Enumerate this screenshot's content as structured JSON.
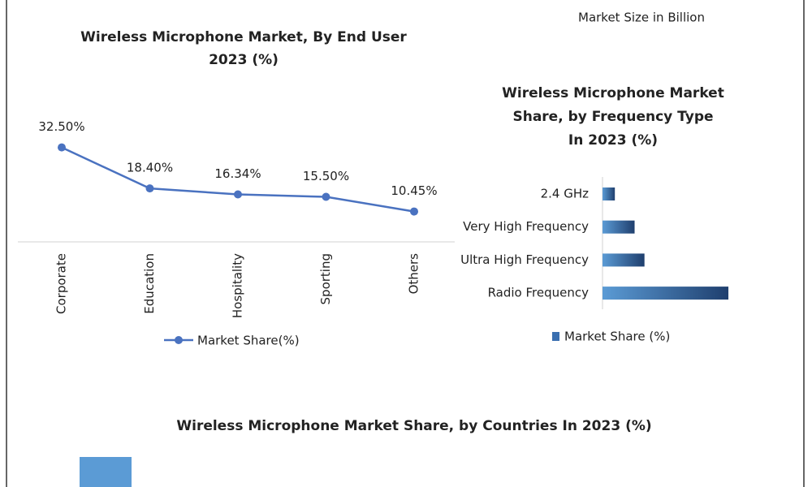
{
  "note": "Market Size in Billion",
  "chart_data": [
    {
      "type": "line",
      "title": [
        "Wireless Microphone Market, By End User",
        "2023 (%)"
      ],
      "categories": [
        "Corporate",
        "Education",
        "Hospitality",
        "Sporting",
        "Others"
      ],
      "series": [
        {
          "name": "Market Share(%)",
          "color": "#4a72c0",
          "values": [
            32.5,
            18.4,
            16.34,
            15.5,
            10.45
          ],
          "value_labels": [
            "32.50%",
            "18.40%",
            "16.34%",
            "15.50%",
            "10.45%"
          ]
        }
      ]
    },
    {
      "type": "hbar",
      "title": [
        "Wireless Microphone Market",
        "Share, by Frequency Type",
        "In 2023 (%)"
      ],
      "categories": [
        "2.4 GHz",
        "Very High Frequency",
        "Ultra High Frequency",
        "Radio Frequency"
      ],
      "series": [
        {
          "name": "Market Share (%)",
          "color": "#3a6fb0",
          "values": [
            5,
            13,
            17,
            51
          ]
        }
      ]
    },
    {
      "type": "bar",
      "title": [
        "Wireless Microphone Market Share, by Countries In 2023 (%)"
      ]
    }
  ]
}
